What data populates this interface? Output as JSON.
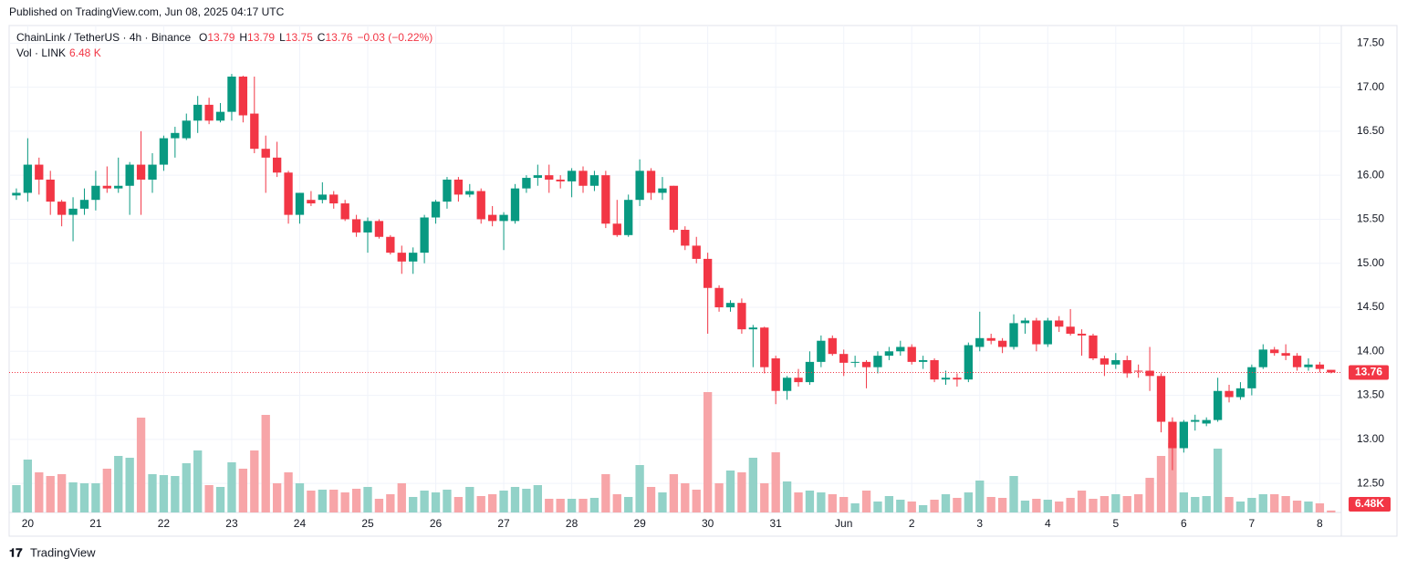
{
  "header": {
    "published": "Published on TradingView.com, Jun 08, 2025 04:17 UTC",
    "footer": "TradingView"
  },
  "chart_data": {
    "type": "candlestick",
    "symbol": "ChainLink / TetherUS · 4h · Binance",
    "ohlc_legend": [
      {
        "label": "O",
        "value": 13.79
      },
      {
        "label": "H",
        "value": 13.79
      },
      {
        "label": "L",
        "value": 13.75
      },
      {
        "label": "C",
        "value": 13.76
      }
    ],
    "change": "−0.03 (−0.22%)",
    "volume_title": "Vol · LINK",
    "volume_legend": "6.48 K",
    "volume_axis_label": "6.48K",
    "up_color": "#089981",
    "down_color": "#f23645",
    "up_volume_color": "#92d2c8",
    "down_volume_color": "#f7a5a8",
    "open": [
      15.77,
      15.8,
      16.12,
      15.95,
      15.7,
      15.55,
      15.62,
      15.72,
      15.88,
      15.85,
      15.88,
      16.12,
      15.95,
      16.12,
      16.42,
      16.42,
      16.62,
      16.8,
      16.62,
      16.72,
      17.12,
      16.7,
      16.3,
      16.2,
      16.03,
      15.55,
      15.72,
      15.72,
      15.78,
      15.68,
      15.5,
      15.35,
      15.48,
      15.3,
      15.12,
      15.02,
      15.12,
      15.52,
      15.7,
      15.95,
      15.78,
      15.82,
      15.55,
      15.48,
      15.48,
      15.85,
      15.97,
      16.0,
      15.95,
      15.93,
      16.05,
      15.88,
      16.0,
      15.45,
      15.32,
      15.72,
      16.05,
      15.8,
      15.88,
      15.38,
      15.2,
      15.05,
      14.72,
      14.5,
      14.55,
      14.25,
      14.27,
      13.92,
      13.55,
      13.7,
      13.65,
      13.88,
      14.15,
      13.97,
      13.87,
      13.88,
      13.82,
      13.95,
      14.0,
      14.05,
      13.88,
      13.9,
      13.68,
      13.7,
      13.68,
      14.05,
      14.15,
      14.12,
      14.05,
      14.32,
      14.35,
      14.08,
      14.35,
      14.28,
      14.2,
      14.18,
      13.92,
      13.85,
      13.9,
      13.78,
      13.78,
      13.72,
      13.2,
      12.9,
      13.2,
      13.18,
      13.22,
      13.55,
      13.48,
      13.58,
      13.82,
      14.02,
      13.98,
      13.95,
      13.82,
      13.85,
      13.79
    ],
    "high": [
      15.85,
      16.42,
      16.2,
      16.05,
      15.72,
      15.75,
      15.85,
      16.05,
      16.1,
      16.2,
      16.15,
      16.5,
      16.25,
      16.45,
      16.55,
      16.7,
      16.9,
      16.88,
      16.82,
      17.15,
      17.13,
      17.12,
      16.45,
      16.38,
      16.05,
      15.8,
      15.82,
      15.92,
      15.82,
      15.72,
      15.55,
      15.52,
      15.5,
      15.32,
      15.2,
      15.18,
      15.55,
      15.72,
      15.98,
      15.98,
      15.9,
      15.85,
      15.65,
      15.58,
      15.9,
      16.0,
      16.12,
      16.12,
      16.0,
      16.08,
      16.1,
      16.05,
      16.05,
      15.72,
      15.78,
      16.18,
      16.08,
      15.98,
      15.88,
      15.42,
      15.3,
      15.12,
      14.75,
      14.58,
      14.6,
      14.3,
      14.28,
      13.95,
      13.72,
      13.8,
      14.0,
      14.18,
      14.18,
      14.02,
      13.95,
      13.9,
      14.0,
      14.05,
      14.12,
      14.08,
      13.95,
      13.92,
      13.78,
      13.75,
      14.1,
      14.45,
      14.2,
      14.15,
      14.42,
      14.38,
      14.38,
      14.38,
      14.4,
      14.48,
      14.25,
      14.2,
      13.95,
      13.98,
      13.95,
      13.85,
      14.05,
      13.75,
      13.25,
      13.22,
      13.28,
      13.25,
      13.7,
      13.62,
      13.65,
      13.85,
      14.08,
      14.05,
      14.08,
      13.98,
      13.92,
      13.88,
      13.79
    ],
    "low": [
      15.72,
      15.7,
      15.78,
      15.55,
      15.42,
      15.25,
      15.55,
      15.6,
      15.8,
      15.8,
      15.55,
      15.55,
      15.8,
      16.05,
      16.2,
      16.4,
      16.48,
      16.58,
      16.6,
      16.62,
      16.6,
      16.25,
      15.8,
      15.98,
      15.45,
      15.45,
      15.65,
      15.68,
      15.62,
      15.48,
      15.3,
      15.12,
      15.28,
      15.1,
      14.88,
      14.88,
      15.0,
      15.45,
      15.62,
      15.7,
      15.75,
      15.45,
      15.42,
      15.15,
      15.45,
      15.8,
      15.88,
      15.8,
      15.85,
      15.75,
      15.8,
      15.82,
      15.4,
      15.3,
      15.3,
      15.65,
      15.72,
      15.72,
      15.35,
      15.15,
      15.0,
      14.2,
      14.45,
      14.45,
      14.2,
      13.82,
      13.75,
      13.4,
      13.45,
      13.6,
      13.62,
      13.82,
      13.95,
      13.72,
      13.82,
      13.58,
      13.75,
      13.9,
      13.95,
      13.85,
      13.8,
      13.65,
      13.62,
      13.6,
      13.65,
      14.0,
      14.08,
      13.98,
      14.02,
      14.2,
      14.0,
      14.05,
      14.22,
      14.18,
      13.95,
      13.9,
      13.72,
      13.8,
      13.7,
      13.7,
      13.55,
      13.08,
      12.65,
      12.85,
      13.1,
      13.15,
      13.2,
      13.42,
      13.45,
      13.5,
      13.8,
      13.95,
      13.9,
      13.78,
      13.78,
      13.76,
      13.75
    ],
    "close": [
      15.8,
      16.12,
      15.95,
      15.7,
      15.55,
      15.62,
      15.72,
      15.88,
      15.85,
      15.88,
      16.12,
      15.95,
      16.12,
      16.42,
      16.48,
      16.62,
      16.8,
      16.62,
      16.72,
      17.12,
      16.68,
      16.3,
      16.2,
      16.03,
      15.55,
      15.8,
      15.68,
      15.78,
      15.68,
      15.5,
      15.35,
      15.48,
      15.3,
      15.12,
      15.02,
      15.12,
      15.52,
      15.7,
      15.95,
      15.78,
      15.82,
      15.5,
      15.48,
      15.55,
      15.85,
      15.97,
      16.0,
      15.95,
      15.93,
      16.05,
      15.88,
      16.0,
      15.45,
      15.32,
      15.72,
      16.05,
      15.8,
      15.85,
      15.38,
      15.2,
      15.05,
      14.72,
      14.5,
      14.55,
      14.25,
      14.27,
      13.82,
      13.55,
      13.7,
      13.65,
      13.88,
      14.12,
      13.97,
      13.87,
      13.88,
      13.82,
      13.95,
      14.0,
      14.05,
      13.88,
      13.9,
      13.68,
      13.7,
      13.68,
      14.07,
      14.15,
      14.12,
      14.05,
      14.32,
      14.35,
      14.08,
      14.35,
      14.28,
      14.2,
      14.18,
      13.92,
      13.85,
      13.9,
      13.75,
      13.77,
      13.72,
      13.2,
      12.9,
      13.2,
      13.22,
      13.22,
      13.55,
      13.48,
      13.58,
      13.82,
      14.02,
      13.98,
      13.95,
      13.82,
      13.85,
      13.8,
      13.76
    ],
    "volume": [
      90000,
      174000,
      132000,
      120000,
      126000,
      99000,
      96000,
      96000,
      144000,
      186000,
      180000,
      312000,
      126000,
      123000,
      120000,
      162000,
      204000,
      90000,
      84000,
      165000,
      144000,
      204000,
      321000,
      96000,
      132000,
      96000,
      72000,
      75000,
      75000,
      66000,
      78000,
      84000,
      45000,
      60000,
      96000,
      51000,
      72000,
      66000,
      75000,
      51000,
      84000,
      54000,
      60000,
      72000,
      84000,
      78000,
      90000,
      45000,
      45000,
      45000,
      45000,
      48000,
      126000,
      60000,
      51000,
      156000,
      84000,
      66000,
      126000,
      96000,
      75000,
      396000,
      96000,
      138000,
      132000,
      180000,
      96000,
      198000,
      102000,
      66000,
      72000,
      66000,
      60000,
      51000,
      30000,
      72000,
      36000,
      54000,
      42000,
      36000,
      24000,
      42000,
      60000,
      48000,
      66000,
      105000,
      51000,
      48000,
      120000,
      39000,
      45000,
      42000,
      36000,
      48000,
      72000,
      45000,
      54000,
      60000,
      54000,
      60000,
      114000,
      186000,
      228000,
      66000,
      51000,
      54000,
      210000,
      51000,
      36000,
      48000,
      60000,
      60000,
      54000,
      39000,
      36000,
      30000,
      6480
    ],
    "xlim": [
      -0.64,
      116.9
    ],
    "xticks": [
      {
        "value": 1,
        "label": "20"
      },
      {
        "value": 7,
        "label": "21"
      },
      {
        "value": 13,
        "label": "22"
      },
      {
        "value": 19,
        "label": "23"
      },
      {
        "value": 25,
        "label": "24"
      },
      {
        "value": 31,
        "label": "25"
      },
      {
        "value": 37,
        "label": "26"
      },
      {
        "value": 43,
        "label": "27"
      },
      {
        "value": 49,
        "label": "28"
      },
      {
        "value": 55,
        "label": "29"
      },
      {
        "value": 61,
        "label": "30"
      },
      {
        "value": 67,
        "label": "31"
      },
      {
        "value": 73,
        "label": "Jun"
      },
      {
        "value": 79,
        "label": "2"
      },
      {
        "value": 85,
        "label": "3"
      },
      {
        "value": 91,
        "label": "4"
      },
      {
        "value": 97,
        "label": "5"
      },
      {
        "value": 103,
        "label": "6"
      },
      {
        "value": 109,
        "label": "7"
      },
      {
        "value": 115,
        "label": "8"
      }
    ],
    "ylim": [
      12.17,
      17.7
    ],
    "yticks": [
      {
        "value": 12.5,
        "label": "12.50"
      },
      {
        "value": 13,
        "label": "13.00"
      },
      {
        "value": 13.5,
        "label": "13.50"
      },
      {
        "value": 14,
        "label": "14.00"
      },
      {
        "value": 14.5,
        "label": "14.50"
      },
      {
        "value": 15,
        "label": "15.00"
      },
      {
        "value": 15.5,
        "label": "15.50"
      },
      {
        "value": 16,
        "label": "16.00"
      },
      {
        "value": 16.5,
        "label": "16.50"
      },
      {
        "value": 17,
        "label": "17.00"
      },
      {
        "value": 17.5,
        "label": "17.50"
      }
    ],
    "volume_ylim": [
      0,
      1602000
    ],
    "grid": true
  }
}
